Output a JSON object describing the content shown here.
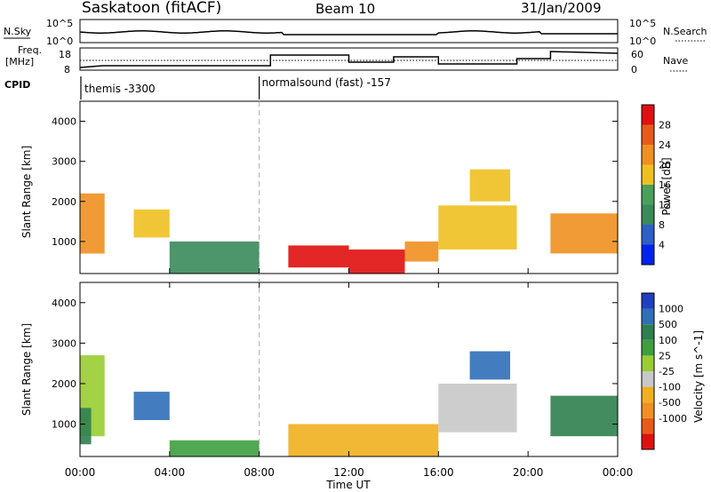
{
  "header": {
    "station": "Saskatoon (fitACF)",
    "beam": "Beam 10",
    "date": "31/Jan/2009"
  },
  "noise_panel": {
    "left_label": "N.Sky",
    "left_ticks": [
      "10^5",
      "10^0"
    ],
    "right_ticks": [
      "10^5",
      "10^0"
    ],
    "right_label": "N.Search"
  },
  "freq_panel": {
    "left_label_1": "Freq.",
    "left_label_2": "[MHz]",
    "left_ticks": [
      "18",
      "8"
    ],
    "right_ticks": [
      "60",
      "0"
    ],
    "right_label": "Nave"
  },
  "cpid": {
    "label": "CPID",
    "segments": [
      {
        "name": "themis -3300",
        "start_hour": 0
      },
      {
        "name": "normalsound (fast) -157",
        "start_hour": 8
      }
    ]
  },
  "power_panel": {
    "ylabel": "Slant Range [km]",
    "yticks": [
      "1000",
      "2000",
      "3000",
      "4000"
    ],
    "colorbar_label": "Power [dB]",
    "colorbar_ticks": [
      "4",
      "8",
      "12",
      "16",
      "20",
      "24",
      "28"
    ],
    "colorbar_colors": [
      "#0022ee",
      "#2f5fc8",
      "#3a8a5a",
      "#4aa05a",
      "#f0c020",
      "#f09020",
      "#e85a1a",
      "#e01010"
    ]
  },
  "velocity_panel": {
    "ylabel": "Slant Range [km]",
    "yticks": [
      "1000",
      "2000",
      "3000",
      "4000"
    ],
    "colorbar_label": "Velocity [m s^-1]",
    "colorbar_ticks": [
      "1000",
      "500",
      "100",
      "25",
      "-25",
      "-100",
      "-500",
      "-1000"
    ],
    "colorbar_colors": [
      "#2040c0",
      "#2f6fb8",
      "#2f7f4f",
      "#3f9f3f",
      "#9acd32",
      "#c8c8c8",
      "#f0b020",
      "#f09020",
      "#e85a1a",
      "#e01010"
    ]
  },
  "x_axis": {
    "ticks": [
      "00:00",
      "04:00",
      "08:00",
      "12:00",
      "16:00",
      "20:00",
      "00:00"
    ],
    "label": "Time UT"
  },
  "chart_data": {
    "type": "heatmap",
    "x_unit": "hours UT",
    "xlim": [
      0,
      24
    ],
    "ylim": [
      200,
      4500
    ],
    "power_regions": [
      {
        "t0": 0.0,
        "t1": 1.1,
        "r0": 700,
        "r1": 2200,
        "value": 22
      },
      {
        "t0": 2.4,
        "t1": 4.0,
        "r0": 1100,
        "r1": 1800,
        "value": 18
      },
      {
        "t0": 4.0,
        "t1": 8.0,
        "r0": 200,
        "r1": 1000,
        "value": 10
      },
      {
        "t0": 9.3,
        "t1": 12.0,
        "r0": 350,
        "r1": 900,
        "value": 28
      },
      {
        "t0": 12.0,
        "t1": 14.5,
        "r0": 200,
        "r1": 800,
        "value": 28
      },
      {
        "t0": 14.5,
        "t1": 16.0,
        "r0": 500,
        "r1": 1000,
        "value": 20
      },
      {
        "t0": 16.0,
        "t1": 19.5,
        "r0": 800,
        "r1": 1900,
        "value": 18
      },
      {
        "t0": 17.4,
        "t1": 19.2,
        "r0": 2000,
        "r1": 2800,
        "value": 16
      },
      {
        "t0": 21.0,
        "t1": 24.0,
        "r0": 700,
        "r1": 1700,
        "value": 22
      }
    ],
    "velocity_regions": [
      {
        "t0": 0.0,
        "t1": 1.1,
        "r0": 700,
        "r1": 2700,
        "value": 0
      },
      {
        "t0": 0.0,
        "t1": 0.5,
        "r0": 500,
        "r1": 1400,
        "value": 100
      },
      {
        "t0": 2.4,
        "t1": 4.0,
        "r0": 1100,
        "r1": 1800,
        "value": 500
      },
      {
        "t0": 4.0,
        "t1": 8.0,
        "r0": 200,
        "r1": 600,
        "value": 50
      },
      {
        "t0": 9.3,
        "t1": 16.0,
        "r0": 200,
        "r1": 1000,
        "value": -200
      },
      {
        "t0": 16.0,
        "t1": 19.5,
        "r0": 800,
        "r1": 2000,
        "value": -100
      },
      {
        "t0": 17.4,
        "t1": 19.2,
        "r0": 2100,
        "r1": 2800,
        "value": 800
      },
      {
        "t0": 21.0,
        "t1": 24.0,
        "r0": 700,
        "r1": 1700,
        "value": 100
      }
    ]
  }
}
